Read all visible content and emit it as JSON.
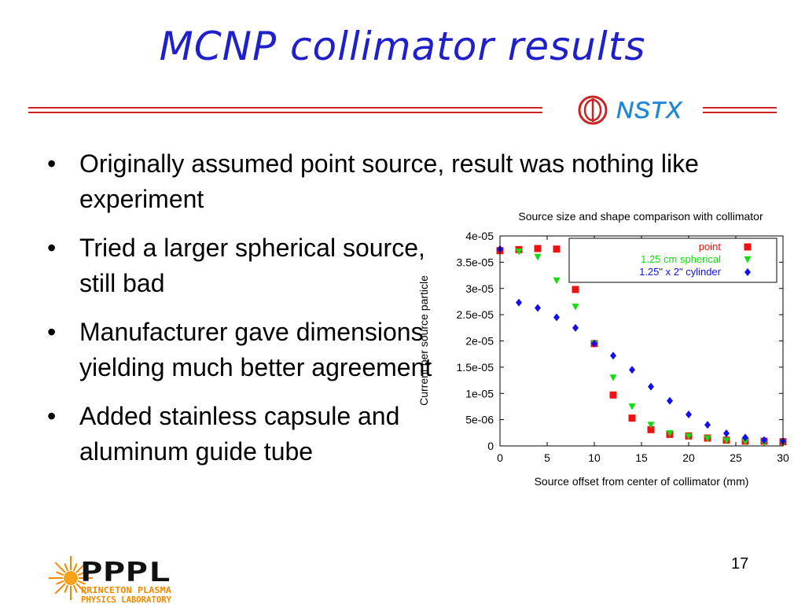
{
  "slide": {
    "title": "MCNP collimator results",
    "logo_text": "NSTX",
    "page_number": "17",
    "footer_logo": {
      "main": "PPPL",
      "line1": "PRINCETON PLASMA",
      "line2": "PHYSICS LABORATORY"
    }
  },
  "bullets": [
    {
      "text": "Originally assumed point source, result was nothing like experiment"
    },
    {
      "text": "Tried a larger spherical source, still bad"
    },
    {
      "text": "Manufacturer gave dimensions yielding much better agreement"
    },
    {
      "text": "Added stainless capsule and aluminum guide tube"
    }
  ],
  "colors": {
    "title": "#1f1fcc",
    "accent_red": "#cc2222",
    "nstx_blue": "#1f86d6"
  },
  "chart_data": {
    "type": "scatter",
    "title": "Source size and shape comparison with collimator",
    "xlabel": "Source offset from center of collimator (mm)",
    "ylabel": "Current per source particle",
    "xlim": [
      0,
      30
    ],
    "ylim": [
      0,
      4e-05
    ],
    "xticks": [
      "0",
      "5",
      "10",
      "15",
      "20",
      "25",
      "30"
    ],
    "yticks": [
      "0",
      "5e-06",
      "1e-05",
      "1.5e-05",
      "2e-05",
      "2.5e-05",
      "3e-05",
      "3.5e-05",
      "4e-05"
    ],
    "legend_position": "top-right",
    "series": [
      {
        "name": "point",
        "marker": "square",
        "color": "#ee1111",
        "x": [
          0,
          2,
          4,
          6,
          8,
          10,
          12,
          14,
          16,
          18,
          20,
          22,
          24,
          26,
          28,
          30
        ],
        "y": [
          3.72e-05,
          3.74e-05,
          3.76e-05,
          3.75e-05,
          2.98e-05,
          1.95e-05,
          9.7e-06,
          5.3e-06,
          3.1e-06,
          2.2e-06,
          1.9e-06,
          1.5e-06,
          1.1e-06,
          9e-07,
          9e-07,
          8e-07
        ]
      },
      {
        "name": "1.25 cm spherical",
        "marker": "triangle-down",
        "color": "#11dd11",
        "x": [
          2,
          4,
          6,
          8,
          10,
          12,
          14,
          16,
          18,
          20,
          22,
          24,
          26,
          28,
          30
        ],
        "y": [
          3.7e-05,
          3.6e-05,
          3.15e-05,
          2.65e-05,
          1.95e-05,
          1.3e-05,
          7.5e-06,
          4e-06,
          2.4e-06,
          1.8e-06,
          1.4e-06,
          1e-06,
          8e-07,
          6e-07,
          5e-07
        ]
      },
      {
        "name": "1.25\" x 2\" cylinder",
        "marker": "diamond",
        "color": "#1111ee",
        "x": [
          0,
          2,
          4,
          6,
          8,
          10,
          12,
          14,
          16,
          18,
          20,
          22,
          24,
          26,
          28,
          30
        ],
        "y": [
          3.75e-05,
          2.73e-05,
          2.63e-05,
          2.45e-05,
          2.25e-05,
          1.95e-05,
          1.72e-05,
          1.45e-05,
          1.13e-05,
          8.6e-06,
          6e-06,
          4e-06,
          2.4e-06,
          1.6e-06,
          1.1e-06,
          9e-07
        ]
      }
    ]
  }
}
